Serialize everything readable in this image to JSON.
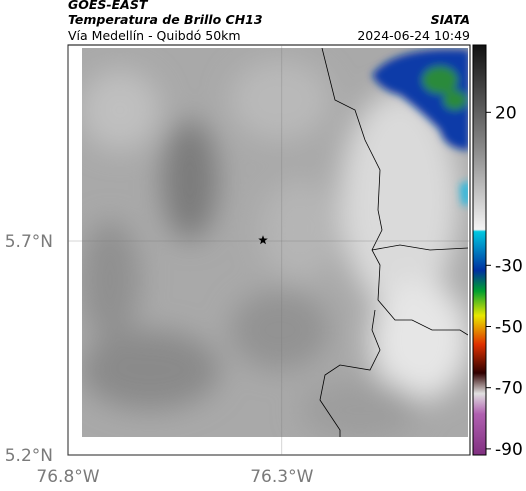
{
  "header": {
    "title": "GOES-EAST",
    "subtitle": "Temperatura de Brillo CH13",
    "region": "Vía Medellín - Quibdó 50km",
    "source": "SIATA",
    "timestamp": "2024-06-24 10:49"
  },
  "map": {
    "xlim": [
      -76.8,
      -75.86
    ],
    "ylim": [
      5.2,
      6.158
    ],
    "xticks": [
      {
        "value": -76.8,
        "label": "76.8°W"
      },
      {
        "value": -76.3,
        "label": "76.3°W"
      }
    ],
    "yticks": [
      {
        "value": 5.2,
        "label": "5.2°N"
      },
      {
        "value": 5.7,
        "label": "5.7°N"
      }
    ],
    "marker": {
      "lon": -76.344,
      "lat": 5.702
    }
  },
  "colorbar": {
    "lim": [
      -92,
      42
    ],
    "ticks": [
      20,
      -30,
      -50,
      -70,
      -90
    ]
  }
}
